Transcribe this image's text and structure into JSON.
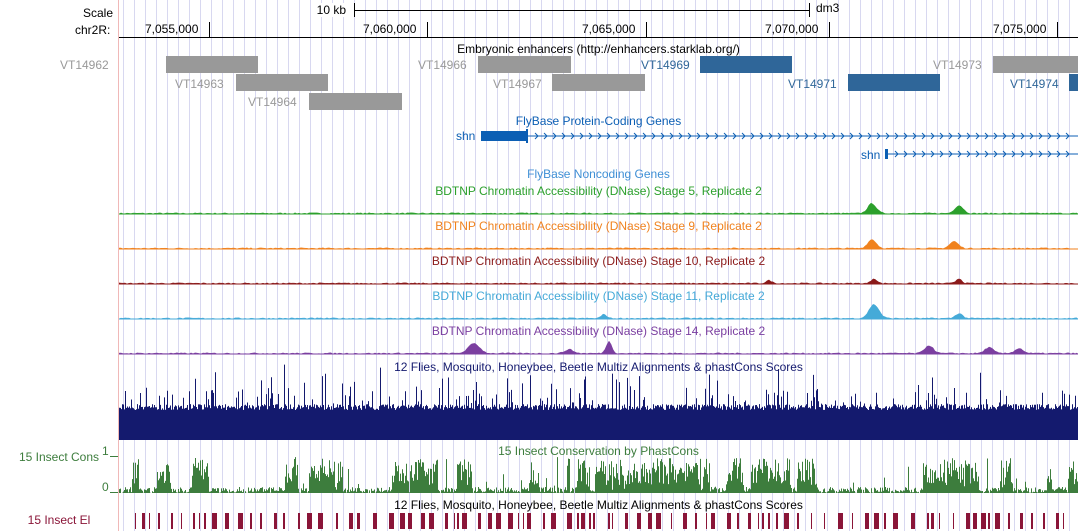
{
  "ruler": {
    "scale_label": "Scale",
    "chrom_label": "chr2R:",
    "scale_bar_text": "10 kb",
    "assembly": "dm3",
    "ticks": [
      "7,055,000",
      "7,060,000",
      "7,065,000",
      "7,070,000",
      "7,075,000"
    ]
  },
  "enhancers": {
    "title": "Embryonic enhancers (http://enhancers.starklab.org/)",
    "gray_color": "#999999",
    "blue_color": "#2f6699",
    "items": [
      {
        "name": "VT14962",
        "color": "gray"
      },
      {
        "name": "VT14963",
        "color": "gray"
      },
      {
        "name": "VT14964",
        "color": "gray"
      },
      {
        "name": "VT14966",
        "color": "gray"
      },
      {
        "name": "VT14967",
        "color": "gray"
      },
      {
        "name": "VT14969",
        "color": "blue"
      },
      {
        "name": "VT14971",
        "color": "blue"
      },
      {
        "name": "VT14973",
        "color": "gray"
      },
      {
        "name": "VT14974",
        "color": "blue"
      }
    ]
  },
  "genes": {
    "title": "FlyBase Protein-Coding Genes",
    "color": "#0c5fb4",
    "gene1": "shn",
    "gene2": "shn"
  },
  "noncoding": {
    "title": "FlyBase Noncoding Genes",
    "color": "#3f8fd5"
  },
  "dnase_tracks": [
    {
      "title": "BDTNP Chromatin Accessibility (DNase) Stage 5, Replicate 2",
      "color": "#2ca02c"
    },
    {
      "title": "BDTNP Chromatin Accessibility (DNase) Stage 9, Replicate 2",
      "color": "#f0821e"
    },
    {
      "title": "BDTNP Chromatin Accessibility (DNase) Stage 10, Replicate 2",
      "color": "#8b1a1a"
    },
    {
      "title": "BDTNP Chromatin Accessibility (DNase) Stage 11, Replicate 2",
      "color": "#45aad8"
    },
    {
      "title": "BDTNP Chromatin Accessibility (DNase) Stage 14, Replicate 2",
      "color": "#7b3fa0"
    }
  ],
  "multiz": {
    "title": "12 Flies, Mosquito, Honeybee, Beetle Multiz Alignments & phastCons Scores",
    "color": "#141a6e"
  },
  "phastcons": {
    "title": "15 Insect Conservation by PhastCons",
    "side_label": "15 Insect Cons",
    "axis_top": "1",
    "axis_bottom": "0",
    "color": "#3d7d3d"
  },
  "elements": {
    "title": "12 Flies, Mosquito, Honeybee, Beetle Multiz Alignments & phastCons Scores",
    "side_label": "15 Insect El",
    "color": "#8a1538"
  }
}
